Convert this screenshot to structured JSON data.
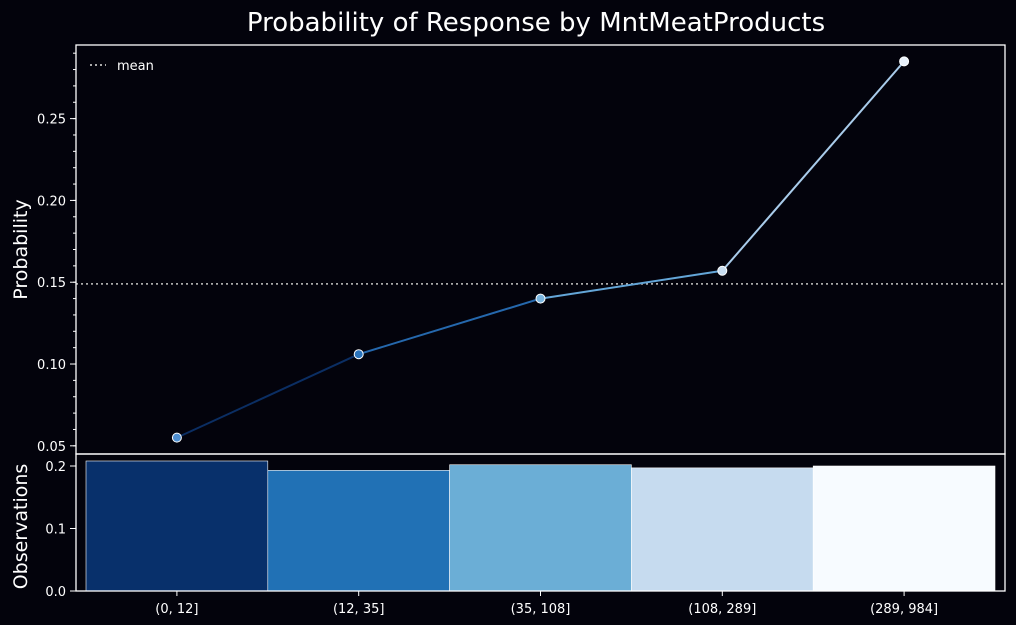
{
  "chart_data": {
    "type": "line",
    "title": "Probability of Response by MntMeatProducts",
    "categories": [
      "(0, 12]",
      "(12, 35]",
      "(35, 108]",
      "(108, 289]",
      "(289, 984]"
    ],
    "probability": {
      "ylabel": "Probability",
      "values": [
        0.055,
        0.106,
        0.14,
        0.157,
        0.285
      ],
      "mean": 0.149,
      "mean_label": "mean",
      "ylim": [
        0.045,
        0.295
      ],
      "yticks": [
        0.05,
        0.1,
        0.15,
        0.2,
        0.25
      ],
      "ytick_labels": [
        "0.05",
        "0.10",
        "0.15",
        "0.20",
        "0.25"
      ],
      "segment_colors": [
        "#0b2e63",
        "#2568ad",
        "#64a6d8",
        "#a9cceb"
      ],
      "marker_colors": [
        "#4f8fd0",
        "#2a73bb",
        "#7ab6e0",
        "#c8ddf0",
        "#e8f1fb"
      ],
      "mean_color": "#aaaaaa",
      "legend_position": "top-left"
    },
    "observations": {
      "type": "bar",
      "ylabel": "Observations",
      "values": [
        0.208,
        0.193,
        0.202,
        0.197,
        0.2
      ],
      "ylim": [
        0,
        0.2
      ],
      "yticks": [
        0.0,
        0.1,
        0.2
      ],
      "ytick_labels": [
        "0.0",
        "0.1",
        "0.2"
      ],
      "bar_colors": [
        "#08306b",
        "#2171b5",
        "#6baed6",
        "#c6dbef",
        "#f7fbff"
      ]
    }
  }
}
